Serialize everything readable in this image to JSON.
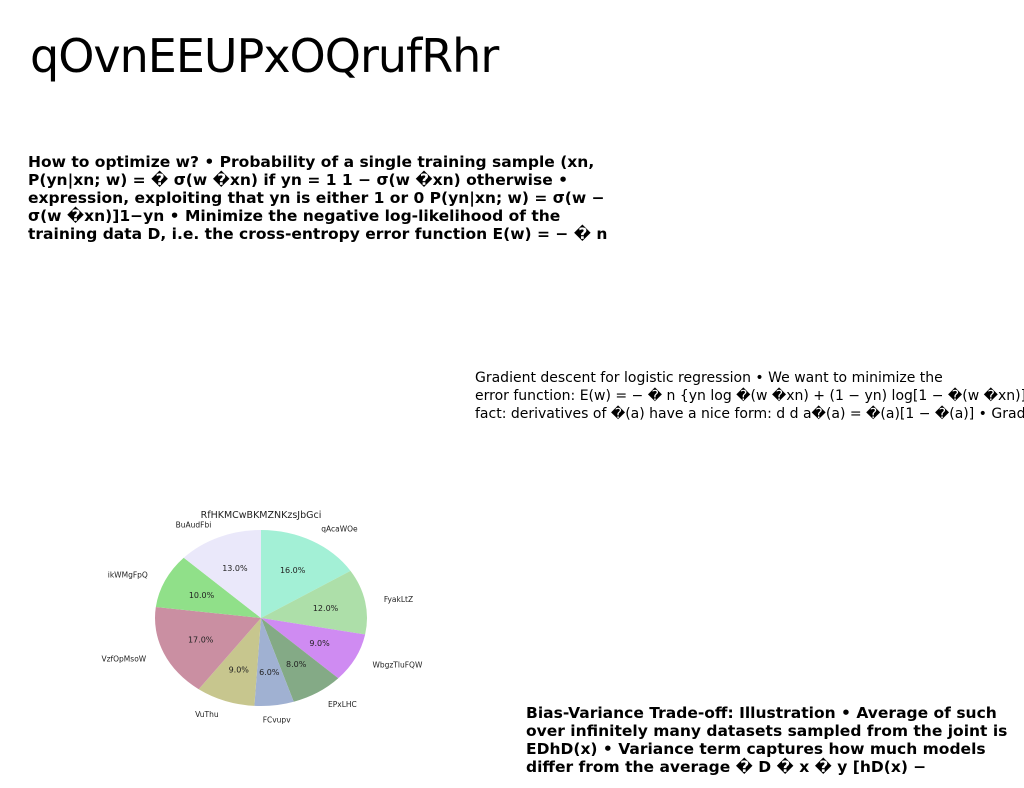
{
  "page": {
    "title": "qOvnEEUPxOQrufRhr",
    "block1": "How to optimize w? • Probability of a single training sample (xn, P(yn|xn; w) = � σ(w �xn) if yn = 1 1 − σ(w �xn) otherwise • expression, exploiting that yn is either 1 or 0 P(yn|xn; w) = σ(w − σ(w �xn)]1−yn • Minimize the negative log-likelihood of the training data D, i.e. the cross-entropy error function E(w) = − � n",
    "block2_lines": [
      "Gradient descent for logistic regression • We want to minimize the",
      "error function: E(w) = − � n {yn log �(w �xn) + (1 − yn) log[1 − �(w �xn)]} •",
      "fact: derivatives of �(a) have a nice form: d d a�(a) = �(a)[1 − �(a)] • Gradient of"
    ],
    "block3": "Bias-Variance Trade-off: Illustration • Average of such over infinitely many datasets sampled from the joint is EDhD(x) • Variance term captures how much models differ from the average � D � x � y [hD(x) −"
  },
  "chart_data": {
    "type": "pie",
    "title": "RfHKMCwBKMZNKzsJbGci",
    "labels": [
      "qAcaWOe",
      "FyakLtZ",
      "WbgzTluFQW",
      "EPxLHC",
      "FCvupv",
      "VuThu",
      "VzfOpMsoW",
      "ikWMgFpQ",
      "BuAudFbi"
    ],
    "values": [
      16.0,
      12.0,
      9.0,
      8.0,
      6.0,
      9.0,
      17.0,
      10.0,
      13.0
    ],
    "pct_labels": [
      "16.0%",
      "12.0%",
      "9.0%",
      "8.0%",
      "6.0%",
      "9.0%",
      "17.0%",
      "10.0%",
      "13.0%"
    ],
    "colors": [
      "#a3f0d6",
      "#addfa9",
      "#cf8bf2",
      "#84aa86",
      "#a0b1d2",
      "#c7c68e",
      "#ca8fa2",
      "#90e089",
      "#eae8fa"
    ],
    "start": "top, clockwise"
  }
}
